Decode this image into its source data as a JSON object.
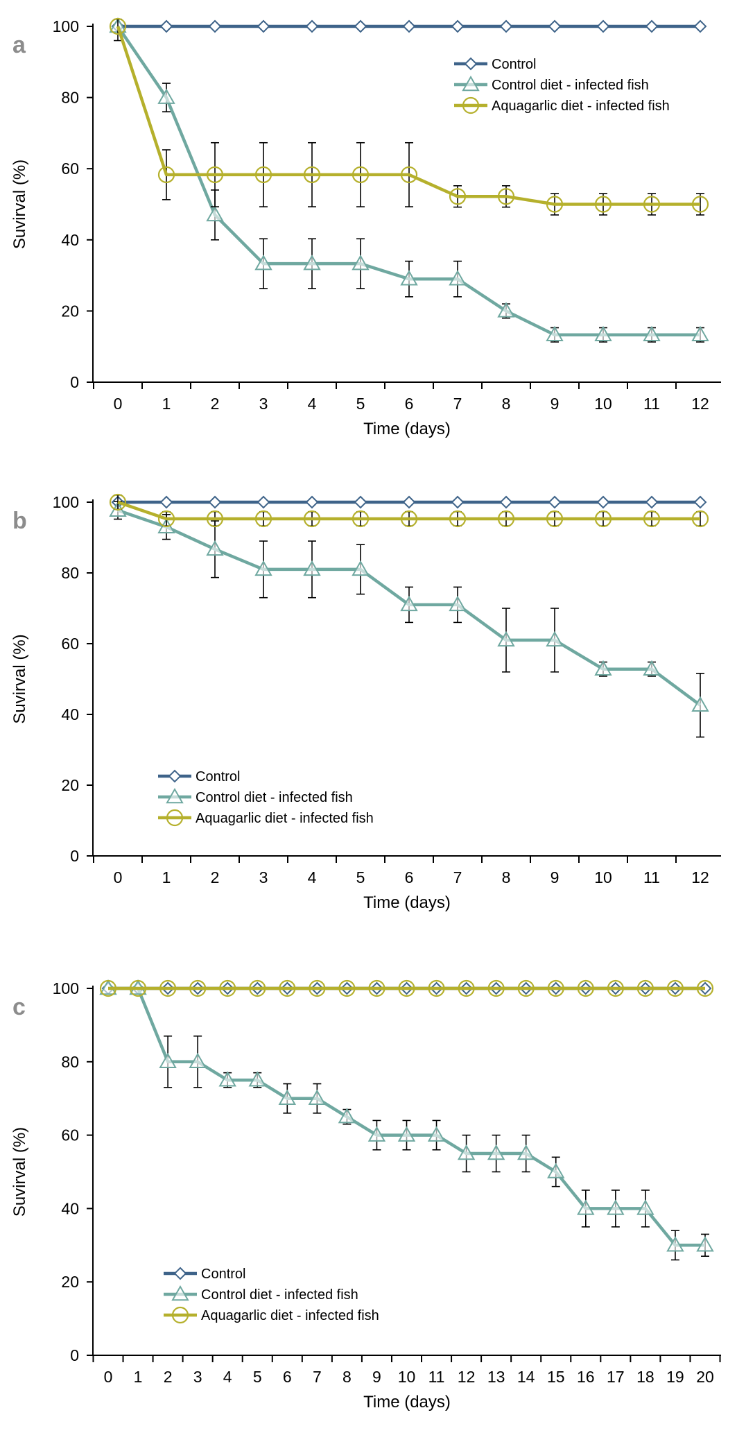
{
  "colors": {
    "control": "#3E6389",
    "control_diet": "#6FA8A0",
    "aquagarlic": "#B5B02C",
    "axis": "#000000",
    "panel_letter": "#8C8C8C",
    "error_bar": "#000000"
  },
  "chart_data": [
    {
      "panel": "a",
      "type": "line",
      "xlabel": "Time (days)",
      "ylabel": "Suvirval (%)",
      "x": [
        0,
        1,
        2,
        3,
        4,
        5,
        6,
        7,
        8,
        9,
        10,
        11,
        12
      ],
      "ylim": [
        0,
        100
      ],
      "yticks": [
        0,
        20,
        40,
        60,
        80,
        100
      ],
      "legend_position": "top-right",
      "series": [
        {
          "name": "Control",
          "marker": "diamond",
          "color_key": "control",
          "values": [
            100,
            100,
            100,
            100,
            100,
            100,
            100,
            100,
            100,
            100,
            100,
            100,
            100
          ],
          "errors": [
            0,
            0,
            0,
            0,
            0,
            0,
            0,
            0,
            0,
            0,
            0,
            0,
            0
          ]
        },
        {
          "name": "Control diet - infected fish",
          "marker": "triangle",
          "color_key": "control_diet",
          "values": [
            100,
            80,
            47,
            33.3,
            33.3,
            33.3,
            29,
            29,
            20,
            13.3,
            13.3,
            13.3,
            13.3
          ],
          "errors": [
            0,
            4,
            7,
            7,
            7,
            7,
            5,
            5,
            2,
            2,
            2,
            2,
            2
          ]
        },
        {
          "name": "Aquagarlic diet - infected fish",
          "marker": "circle",
          "color_key": "aquagarlic",
          "values": [
            100,
            58.3,
            58.3,
            58.3,
            58.3,
            58.3,
            58.3,
            52.2,
            52.2,
            50,
            50,
            50,
            50
          ],
          "errors": [
            4,
            7,
            9,
            9,
            9,
            9,
            9,
            3,
            3,
            3,
            3,
            3,
            3
          ]
        }
      ]
    },
    {
      "panel": "b",
      "type": "line",
      "xlabel": "Time (days)",
      "ylabel": "Suvirval (%)",
      "x": [
        0,
        1,
        2,
        3,
        4,
        5,
        6,
        7,
        8,
        9,
        10,
        11,
        12
      ],
      "ylim": [
        0,
        100
      ],
      "yticks": [
        0,
        20,
        40,
        60,
        80,
        100
      ],
      "legend_position": "bottom-left",
      "series": [
        {
          "name": "Control",
          "marker": "diamond",
          "color_key": "control",
          "values": [
            100,
            100,
            100,
            100,
            100,
            100,
            100,
            100,
            100,
            100,
            100,
            100,
            100
          ],
          "errors": [
            0,
            0,
            0,
            0,
            0,
            0,
            0,
            0,
            0,
            0,
            0,
            0,
            0
          ]
        },
        {
          "name": "Control diet - infected fish",
          "marker": "triangle",
          "color_key": "control_diet",
          "values": [
            97.7,
            93,
            86.7,
            81,
            81,
            81,
            71,
            71,
            61,
            61,
            52.8,
            52.8,
            42.6
          ],
          "errors": [
            2.5,
            3.5,
            8,
            8,
            8,
            7,
            5,
            5,
            9,
            9,
            2,
            2,
            9
          ]
        },
        {
          "name": "Aquagarlic diet - infected fish",
          "marker": "circle",
          "color_key": "aquagarlic",
          "values": [
            100,
            95.3,
            95.3,
            95.3,
            95.3,
            95.3,
            95.3,
            95.3,
            95.3,
            95.3,
            95.3,
            95.3,
            95.3
          ],
          "errors": [
            2,
            2,
            2,
            2,
            2,
            2,
            2,
            2,
            2,
            2,
            2,
            2,
            2
          ]
        }
      ]
    },
    {
      "panel": "c",
      "type": "line",
      "xlabel": "Time (days)",
      "ylabel": "Suvirval (%)",
      "x": [
        0,
        1,
        2,
        3,
        4,
        5,
        6,
        7,
        8,
        9,
        10,
        11,
        12,
        13,
        14,
        15,
        16,
        17,
        18,
        19,
        20
      ],
      "ylim": [
        0,
        100
      ],
      "yticks": [
        0,
        20,
        40,
        60,
        80,
        100
      ],
      "legend_position": "bottom-left",
      "series": [
        {
          "name": "Control",
          "marker": "diamond",
          "color_key": "control",
          "values": [
            100,
            100,
            100,
            100,
            100,
            100,
            100,
            100,
            100,
            100,
            100,
            100,
            100,
            100,
            100,
            100,
            100,
            100,
            100,
            100,
            100
          ],
          "errors": [
            0,
            0,
            0,
            0,
            0,
            0,
            0,
            0,
            0,
            0,
            0,
            0,
            0,
            0,
            0,
            0,
            0,
            0,
            0,
            0,
            0
          ]
        },
        {
          "name": "Control diet - infected fish",
          "marker": "triangle",
          "color_key": "control_diet",
          "values": [
            100,
            100,
            80,
            80,
            75,
            75,
            70,
            70,
            65,
            60,
            60,
            60,
            55,
            55,
            55,
            50,
            40,
            40,
            40,
            30,
            30
          ],
          "errors": [
            0,
            0,
            7,
            7,
            2,
            2,
            4,
            4,
            2,
            4,
            4,
            4,
            5,
            5,
            5,
            4,
            5,
            5,
            5,
            4,
            3
          ]
        },
        {
          "name": "Aquagarlic diet - infected fish",
          "marker": "circle",
          "color_key": "aquagarlic",
          "values": [
            100,
            100,
            100,
            100,
            100,
            100,
            100,
            100,
            100,
            100,
            100,
            100,
            100,
            100,
            100,
            100,
            100,
            100,
            100,
            100,
            100
          ],
          "errors": [
            0,
            0,
            0,
            0,
            0,
            0,
            0,
            0,
            0,
            0,
            0,
            0,
            0,
            0,
            0,
            0,
            0,
            0,
            0,
            0,
            0
          ]
        }
      ]
    }
  ]
}
